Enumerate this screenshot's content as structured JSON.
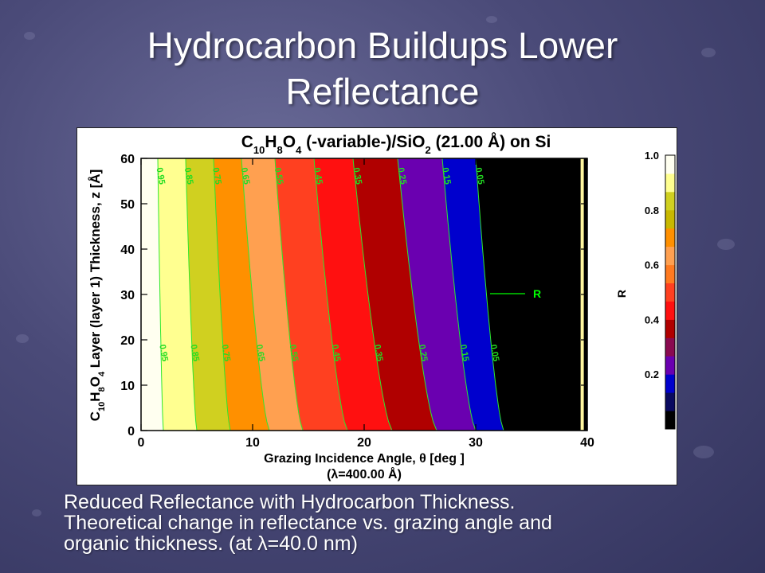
{
  "slide": {
    "title_line1": "Hydrocarbon Buildups Lower",
    "title_line2": "Reflectance",
    "caption_line1": "Reduced Reflectance with Hydrocarbon Thickness.",
    "caption_line2": "Theoretical change in reflectance vs. grazing angle and",
    "caption_line3": "organic thickness. (at λ=40.0 nm)"
  },
  "chart_data": {
    "type": "heatmap",
    "title": "C10H8O4 (-variable-)/SiO2 (21.00 Å) on Si",
    "xlabel": "Grazing Incidence Angle, θ [deg ]",
    "xlabel2": "(λ=400.00 Å)",
    "ylabel": "C10H8O4 Layer (layer 1) Thickness, z [Å]",
    "xlim": [
      0,
      40
    ],
    "ylim": [
      0,
      60
    ],
    "x_ticks": [
      "0",
      "10",
      "20",
      "30",
      "40"
    ],
    "y_ticks": [
      "0",
      "10",
      "20",
      "30",
      "40",
      "50",
      "60"
    ],
    "colorbar_label": "R",
    "colorbar_ticks": [
      "0.2",
      "0.4",
      "0.6",
      "0.8",
      "1.0"
    ],
    "colorbar_colors": [
      "#000000",
      "#0a0a60",
      "#0000cd",
      "#6a00b0",
      "#8a0a50",
      "#b00000",
      "#ff1010",
      "#ff4020",
      "#ff7a20",
      "#ffa050",
      "#ff9000",
      "#c8b800",
      "#d0d020",
      "#ffff90",
      "#fffff0"
    ],
    "contour_levels": [
      "0.95",
      "0.85",
      "0.75",
      "0.65",
      "0.55",
      "0.45",
      "0.35",
      "0.25",
      "0.15",
      "0.05"
    ],
    "contour_angle_at_z60": [
      1.5,
      4.0,
      6.5,
      9.0,
      12.0,
      15.5,
      19.0,
      23.0,
      27.0,
      30.0
    ],
    "contour_angle_at_z0": [
      2.0,
      5.0,
      8.0,
      11.5,
      14.5,
      18.5,
      22.5,
      26.5,
      30.0,
      32.5
    ],
    "legend_entry": "R"
  }
}
